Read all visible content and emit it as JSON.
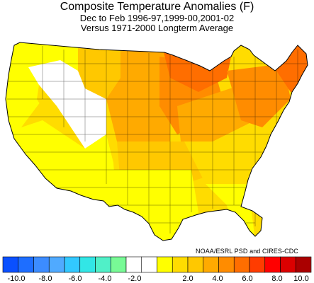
{
  "title": "Composite Temperature Anomalies (F)",
  "subtitle_period": "Dec to Feb  1996-97,1999-00,2001-02",
  "subtitle_base": "Versus 1971-2000 Longterm Average",
  "credit": "NOAA/ESRL PSD and CIRES-CDC",
  "legend": {
    "ticks": [
      "-10.0",
      "-8.0",
      "-6.0",
      "-4.0",
      "-2.0",
      "2.0",
      "4.0",
      "6.0",
      "8.0",
      "10.0"
    ],
    "bins": [
      {
        "color": "#0a50ff"
      },
      {
        "color": "#1e6eff"
      },
      {
        "color": "#3c8cff"
      },
      {
        "color": "#50aaff"
      },
      {
        "color": "#32c8ff"
      },
      {
        "color": "#32e6e6"
      },
      {
        "color": "#50f0c8"
      },
      {
        "color": "#78fa96"
      },
      {
        "color": "#ffffff"
      },
      {
        "color": "#ffffff"
      },
      {
        "color": "#ffff00"
      },
      {
        "color": "#ffdc00"
      },
      {
        "color": "#ffc800"
      },
      {
        "color": "#ffaa00"
      },
      {
        "color": "#ff8c00"
      },
      {
        "color": "#ff6e00"
      },
      {
        "color": "#ff3c00"
      },
      {
        "color": "#ff0000"
      },
      {
        "color": "#dc0000"
      },
      {
        "color": "#aa0000"
      }
    ]
  },
  "regions": [
    {
      "name": "region-pacific-northwest",
      "color": "#ffff00"
    },
    {
      "name": "region-great-basin-white",
      "color": "#ffffff"
    },
    {
      "name": "region-nevada",
      "color": "#ffdc00"
    },
    {
      "name": "region-southwest",
      "color": "#ffff00"
    },
    {
      "name": "region-northern-rockies",
      "color": "#ffc800"
    },
    {
      "name": "region-plains",
      "color": "#ffaa00"
    },
    {
      "name": "region-south-central",
      "color": "#ffc800"
    },
    {
      "name": "region-southeast",
      "color": "#ffdc00"
    },
    {
      "name": "region-florida",
      "color": "#ffff00"
    },
    {
      "name": "region-texas-gulf",
      "color": "#ffff00"
    },
    {
      "name": "region-midwest",
      "color": "#ff8c00"
    },
    {
      "name": "region-ohio-valley",
      "color": "#ffaa00"
    },
    {
      "name": "region-upper-midwest",
      "color": "#ff6e00"
    },
    {
      "name": "region-northeast",
      "color": "#ff8c00"
    },
    {
      "name": "region-new-england",
      "color": "#ff6e00"
    }
  ]
}
